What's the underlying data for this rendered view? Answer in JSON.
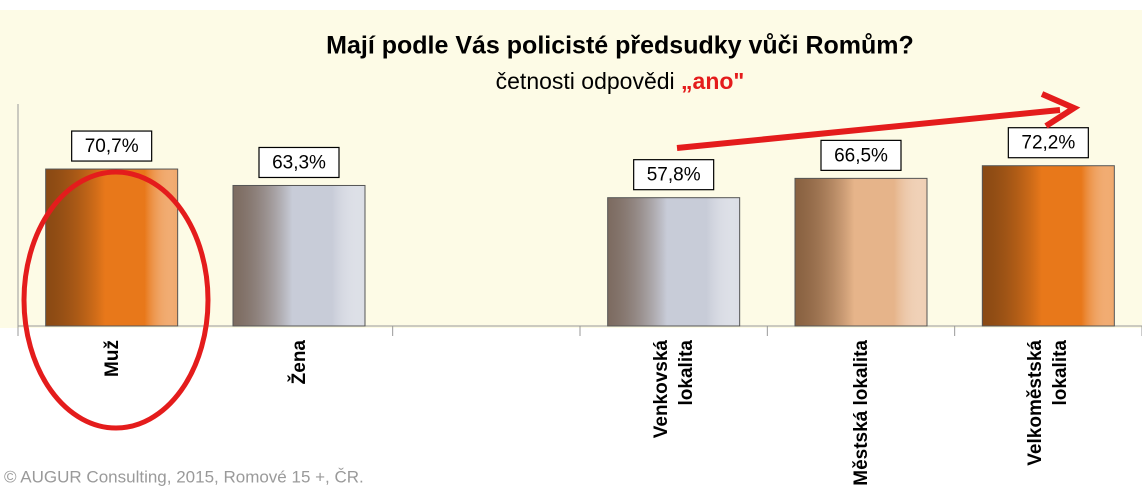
{
  "chart_data": {
    "type": "bar",
    "title": "Mají podle Vás policisté předsudky vůči Romům?",
    "subtitle": [
      "četnosti odpovědi",
      "„ano\""
    ],
    "categories": [
      "Muž",
      "Žena",
      null,
      "Venkovská lokalita",
      "Městská lokalita",
      "Velkoměstská lokalita"
    ],
    "values": [
      70.7,
      63.3,
      null,
      57.8,
      66.5,
      72.2
    ],
    "value_labels": [
      "70,7%",
      "63,3%",
      null,
      "57,8%",
      "66,5%",
      "72,2%"
    ],
    "colors": [
      "#e8781a",
      "#c8ccd8",
      null,
      "#c8ccd8",
      "#e6b48a",
      "#e8781a"
    ],
    "ylim": [
      0,
      100
    ],
    "footer": "© AUGUR Consulting, 2015, Romové 15 +, ČR."
  }
}
